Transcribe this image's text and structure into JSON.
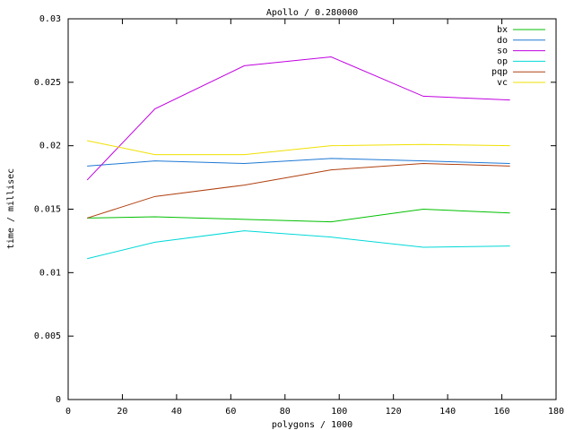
{
  "chart_data": {
    "type": "line",
    "title": "Apollo / 0.280000",
    "x_label": "polygons / 1000",
    "y_label": "time / millisec",
    "x": [
      7,
      32,
      65,
      97,
      131,
      163
    ],
    "series": [
      {
        "name": "bx",
        "color": "#00c000",
        "values": [
          0.0143,
          0.0144,
          0.0142,
          0.014,
          0.015,
          0.0147
        ]
      },
      {
        "name": "do",
        "color": "#1e78d4",
        "values": [
          0.0184,
          0.0188,
          0.0186,
          0.019,
          0.0188,
          0.0186
        ]
      },
      {
        "name": "so",
        "color": "#c000e0",
        "values": [
          0.0173,
          0.0229,
          0.0263,
          0.027,
          0.0239,
          0.0236
        ]
      },
      {
        "name": "op",
        "color": "#00d8d8",
        "values": [
          0.0111,
          0.0124,
          0.0133,
          0.0128,
          0.012,
          0.0121
        ]
      },
      {
        "name": "pqp",
        "color": "#b04010",
        "values": [
          0.0143,
          0.016,
          0.0169,
          0.0181,
          0.0186,
          0.0184
        ]
      },
      {
        "name": "vc",
        "color": "#f0e000",
        "values": [
          0.0204,
          0.0193,
          0.0193,
          0.02,
          0.0201,
          0.02
        ]
      }
    ],
    "xlim": [
      0,
      180
    ],
    "xticks": [
      0,
      20,
      40,
      60,
      80,
      100,
      120,
      140,
      160,
      180
    ],
    "ylim": [
      0,
      0.03
    ],
    "yticks": [
      0,
      0.005,
      0.01,
      0.015,
      0.02,
      0.025,
      0.03
    ],
    "grid": false,
    "legend": "top-right"
  }
}
